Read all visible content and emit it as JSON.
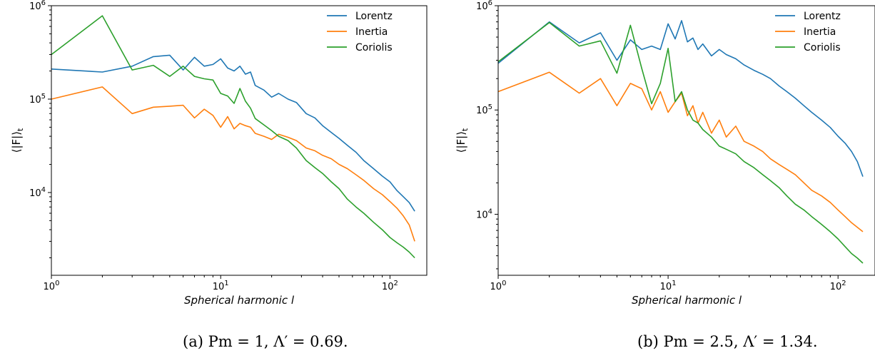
{
  "chart_data": [
    {
      "type": "line",
      "x_scale": "log",
      "y_scale": "log",
      "xlim": [
        1,
        165
      ],
      "ylim": [
        1300,
        1000000
      ],
      "xlabel": "Spherical harmonic l",
      "ylabel": "⟨|F|⟩_t",
      "x_tick_labels": [
        "10^0",
        "10^1",
        "10^2"
      ],
      "y_tick_labels": [
        "10^4",
        "10^5",
        "10^6"
      ],
      "legend_position": "top-right",
      "caption": "(a) Pm = 1,  Λ′ = 0.69.",
      "series": [
        {
          "name": "Lorentz",
          "color": "#1f77b4",
          "x": [
            1,
            2,
            3,
            4,
            5,
            6,
            7,
            8,
            9,
            10,
            11,
            12,
            13,
            14,
            15,
            16,
            18,
            20,
            22,
            25,
            28,
            32,
            36,
            40,
            45,
            50,
            56,
            63,
            70,
            80,
            90,
            100,
            110,
            120,
            130,
            140
          ],
          "y": [
            210000,
            195000,
            225000,
            285000,
            295000,
            205000,
            280000,
            225000,
            235000,
            270000,
            215000,
            200000,
            225000,
            185000,
            195000,
            140000,
            125000,
            105000,
            115000,
            100000,
            92000,
            70000,
            63000,
            52000,
            44000,
            38000,
            32000,
            27000,
            22000,
            18000,
            15000,
            13000,
            10500,
            9000,
            7800,
            6300
          ]
        },
        {
          "name": "Inertia",
          "color": "#ff7f0e",
          "x": [
            1,
            2,
            3,
            4,
            5,
            6,
            7,
            8,
            9,
            10,
            11,
            12,
            13,
            14,
            15,
            16,
            18,
            20,
            22,
            25,
            28,
            32,
            36,
            40,
            45,
            50,
            56,
            63,
            70,
            80,
            90,
            100,
            110,
            120,
            130,
            140
          ],
          "y": [
            100000,
            135000,
            70000,
            82000,
            84000,
            86000,
            63000,
            78000,
            67000,
            50000,
            65000,
            48000,
            55000,
            52000,
            50000,
            43000,
            40000,
            37000,
            42000,
            39000,
            36000,
            30000,
            28000,
            25000,
            23000,
            20000,
            18000,
            15500,
            13500,
            11000,
            9500,
            8000,
            6800,
            5600,
            4500,
            3000
          ]
        },
        {
          "name": "Coriolis",
          "color": "#2ca02c",
          "x": [
            1,
            2,
            3,
            4,
            5,
            6,
            7,
            8,
            9,
            10,
            11,
            12,
            13,
            14,
            15,
            16,
            18,
            20,
            22,
            25,
            28,
            32,
            36,
            40,
            45,
            50,
            56,
            63,
            70,
            80,
            90,
            100,
            110,
            120,
            130,
            140
          ],
          "y": [
            300000,
            780000,
            205000,
            230000,
            175000,
            225000,
            175000,
            165000,
            160000,
            115000,
            108000,
            90000,
            130000,
            95000,
            80000,
            62000,
            53000,
            46000,
            40000,
            36000,
            30000,
            22000,
            18500,
            16000,
            13000,
            11000,
            8500,
            7000,
            6000,
            4800,
            4000,
            3300,
            2900,
            2600,
            2300,
            2000
          ]
        }
      ]
    },
    {
      "type": "line",
      "x_scale": "log",
      "y_scale": "log",
      "xlim": [
        1,
        165
      ],
      "ylim": [
        2600,
        1000000
      ],
      "xlabel": "Spherical harmonic l",
      "ylabel": "⟨|F|⟩_t",
      "x_tick_labels": [
        "10^0",
        "10^1",
        "10^2"
      ],
      "y_tick_labels": [
        "10^4",
        "10^5",
        "10^6"
      ],
      "legend_position": "top-right",
      "caption": "(b) Pm = 2.5,  Λ′ = 1.34.",
      "series": [
        {
          "name": "Lorentz",
          "color": "#1f77b4",
          "x": [
            1,
            2,
            3,
            4,
            5,
            6,
            7,
            8,
            9,
            10,
            11,
            12,
            13,
            14,
            15,
            16,
            18,
            20,
            22,
            25,
            28,
            32,
            36,
            40,
            45,
            50,
            56,
            63,
            70,
            80,
            90,
            100,
            110,
            120,
            130,
            140
          ],
          "y": [
            280000,
            700000,
            440000,
            550000,
            300000,
            470000,
            380000,
            410000,
            380000,
            670000,
            480000,
            720000,
            450000,
            490000,
            380000,
            430000,
            330000,
            380000,
            340000,
            310000,
            270000,
            240000,
            220000,
            200000,
            170000,
            150000,
            130000,
            110000,
            95000,
            80000,
            68000,
            56000,
            48000,
            40000,
            32000,
            23000
          ]
        },
        {
          "name": "Inertia",
          "color": "#ff7f0e",
          "x": [
            1,
            2,
            3,
            4,
            5,
            6,
            7,
            8,
            9,
            10,
            11,
            12,
            13,
            14,
            15,
            16,
            18,
            20,
            22,
            25,
            28,
            32,
            36,
            40,
            45,
            50,
            56,
            63,
            70,
            80,
            90,
            100,
            110,
            120,
            130,
            140
          ],
          "y": [
            150000,
            230000,
            145000,
            200000,
            110000,
            180000,
            160000,
            100000,
            150000,
            95000,
            120000,
            145000,
            88000,
            110000,
            75000,
            95000,
            60000,
            80000,
            55000,
            70000,
            50000,
            45000,
            40000,
            34000,
            30000,
            27000,
            24000,
            20000,
            17000,
            15000,
            13000,
            11000,
            9500,
            8300,
            7500,
            6800
          ]
        },
        {
          "name": "Coriolis",
          "color": "#2ca02c",
          "x": [
            1,
            2,
            3,
            4,
            5,
            6,
            7,
            8,
            9,
            10,
            11,
            12,
            13,
            14,
            15,
            16,
            18,
            20,
            22,
            25,
            28,
            32,
            36,
            40,
            45,
            50,
            56,
            63,
            70,
            80,
            90,
            100,
            110,
            120,
            130,
            140
          ],
          "y": [
            290000,
            690000,
            410000,
            460000,
            225000,
            650000,
            250000,
            115000,
            180000,
            390000,
            120000,
            150000,
            100000,
            80000,
            75000,
            65000,
            55000,
            45000,
            42000,
            38000,
            32000,
            28000,
            24000,
            21000,
            18000,
            15000,
            12500,
            11000,
            9500,
            8000,
            6800,
            5800,
            4900,
            4200,
            3800,
            3400
          ]
        }
      ]
    }
  ]
}
